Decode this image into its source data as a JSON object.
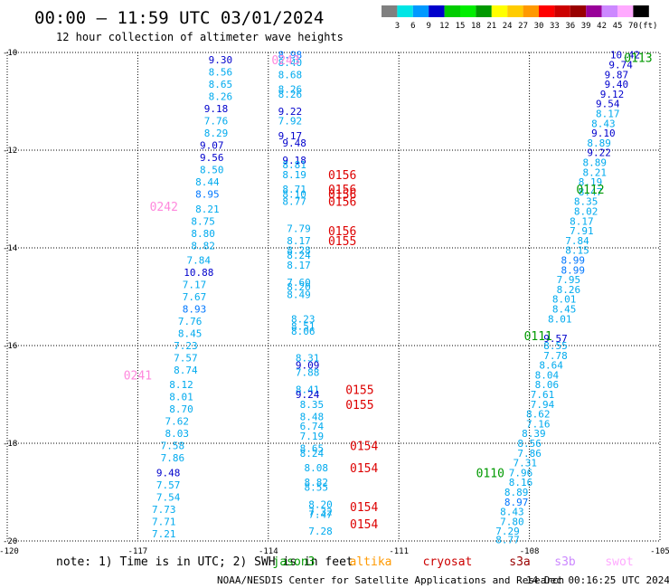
{
  "header": {
    "title": "00:00 — 11:59 UTC 03/01/2024",
    "subtitle": "12 hour collection of altimeter wave heights"
  },
  "colorbar": {
    "unit_label": "(ft)",
    "labels": [
      "3",
      "6",
      "9",
      "12",
      "15",
      "18",
      "21",
      "24",
      "27",
      "30",
      "33",
      "36",
      "39",
      "42",
      "45",
      "70"
    ],
    "colors": [
      "#808080",
      "#00e5e5",
      "#0099ff",
      "#0000cc",
      "#00cc00",
      "#00ee00",
      "#009900",
      "#ffff00",
      "#ffcc00",
      "#ff9900",
      "#ff0000",
      "#cc0000",
      "#990000",
      "#990099",
      "#cc88ff",
      "#ffaaff",
      "#000000"
    ]
  },
  "footer": {
    "note": "note: 1) Time is in UTC; 2) SWH is in feet",
    "credit": "NOAA/NESDIS Center for Satellite Applications and Research",
    "timestamp": "14 Dec 00:16:25 UTC 2024",
    "satellites": [
      {
        "name": "jason3",
        "color": "#009900"
      },
      {
        "name": "altika",
        "color": "#ff9900"
      },
      {
        "name": "cryosat",
        "color": "#cc0000"
      },
      {
        "name": "s3a",
        "color": "#990000"
      },
      {
        "name": "s3b",
        "color": "#cc88ff"
      },
      {
        "name": "swot",
        "color": "#ffaaff"
      }
    ]
  },
  "chart_data": {
    "type": "scatter",
    "title": "12 hour collection of altimeter wave heights",
    "x_ticks": [
      "-117",
      "-114",
      "-111",
      "-108",
      "-105"
    ],
    "y_ticks": [
      "-10",
      "-12",
      "-14",
      "-16",
      "-18",
      "-20"
    ],
    "x_extra_label": "-120",
    "xlim": [
      -120,
      -105
    ],
    "ylim": [
      -20,
      -10
    ],
    "grid": true,
    "value_colors": {
      "light": "#00aaee",
      "mid": "#0077ff",
      "dark": "#0000cc"
    },
    "passes": [
      {
        "label": "0243",
        "lon": -113.6,
        "lat": -10.15,
        "color": "#ff88dd"
      },
      {
        "label": "0242",
        "lon": -116.4,
        "lat": -13.15,
        "color": "#ff88dd"
      },
      {
        "label": "0241",
        "lon": -117.0,
        "lat": -16.6,
        "color": "#ff88dd"
      },
      {
        "label": "0156",
        "lon": -112.3,
        "lat": -12.5,
        "color": "#dd0000"
      },
      {
        "label": "0156",
        "lon": -112.3,
        "lat": -12.8,
        "color": "#dd0000"
      },
      {
        "label": "0156",
        "lon": -112.3,
        "lat": -12.9,
        "color": "#dd0000"
      },
      {
        "label": "0156",
        "lon": -112.3,
        "lat": -13.05,
        "color": "#dd0000"
      },
      {
        "label": "0156",
        "lon": -112.3,
        "lat": -13.65,
        "color": "#dd0000"
      },
      {
        "label": "0155",
        "lon": -112.3,
        "lat": -13.85,
        "color": "#dd0000"
      },
      {
        "label": "0155",
        "lon": -111.9,
        "lat": -16.9,
        "color": "#dd0000"
      },
      {
        "label": "0155",
        "lon": -111.9,
        "lat": -17.2,
        "color": "#dd0000"
      },
      {
        "label": "0154",
        "lon": -111.8,
        "lat": -18.05,
        "color": "#dd0000"
      },
      {
        "label": "0154",
        "lon": -111.8,
        "lat": -18.5,
        "color": "#dd0000"
      },
      {
        "label": "0154",
        "lon": -111.8,
        "lat": -19.3,
        "color": "#dd0000"
      },
      {
        "label": "0154",
        "lon": -111.8,
        "lat": -19.65,
        "color": "#dd0000"
      },
      {
        "label": "0113",
        "lon": -105.5,
        "lat": -10.1,
        "color": "#009900"
      },
      {
        "label": "0112",
        "lon": -106.6,
        "lat": -12.8,
        "color": "#009900"
      },
      {
        "label": "0111",
        "lon": -107.8,
        "lat": -15.8,
        "color": "#009900"
      },
      {
        "label": "0110",
        "lon": -108.9,
        "lat": -18.6,
        "color": "#009900"
      }
    ],
    "tracks": [
      {
        "name": "track-west",
        "points": [
          {
            "lon": -115.1,
            "lat": -10.15,
            "swh": "9.30"
          },
          {
            "lon": -115.1,
            "lat": -10.4,
            "swh": "8.56"
          },
          {
            "lon": -115.1,
            "lat": -10.65,
            "swh": "8.65"
          },
          {
            "lon": -115.1,
            "lat": -10.9,
            "swh": "8.26"
          },
          {
            "lon": -115.2,
            "lat": -11.15,
            "swh": "9.18"
          },
          {
            "lon": -115.2,
            "lat": -11.4,
            "swh": "7.76"
          },
          {
            "lon": -115.2,
            "lat": -11.65,
            "swh": "8.29"
          },
          {
            "lon": -115.3,
            "lat": -11.9,
            "swh": "9.07"
          },
          {
            "lon": -115.3,
            "lat": -12.15,
            "swh": "9.56"
          },
          {
            "lon": -115.3,
            "lat": -12.4,
            "swh": "8.50"
          },
          {
            "lon": -115.4,
            "lat": -12.65,
            "swh": "8.44"
          },
          {
            "lon": -115.4,
            "lat": -12.9,
            "swh": "8.95"
          },
          {
            "lon": -115.4,
            "lat": -13.2,
            "swh": "8.21"
          },
          {
            "lon": -115.5,
            "lat": -13.45,
            "swh": "8.75"
          },
          {
            "lon": -115.5,
            "lat": -13.7,
            "swh": "8.80"
          },
          {
            "lon": -115.5,
            "lat": -13.95,
            "swh": "8.82"
          },
          {
            "lon": -115.6,
            "lat": -14.25,
            "swh": "7.84"
          },
          {
            "lon": -115.6,
            "lat": -14.5,
            "swh": "10.88"
          },
          {
            "lon": -115.7,
            "lat": -14.75,
            "swh": "7.17"
          },
          {
            "lon": -115.7,
            "lat": -15.0,
            "swh": "7.67"
          },
          {
            "lon": -115.7,
            "lat": -15.25,
            "swh": "8.93"
          },
          {
            "lon": -115.8,
            "lat": -15.5,
            "swh": "7.76"
          },
          {
            "lon": -115.8,
            "lat": -15.75,
            "swh": "8.45"
          },
          {
            "lon": -115.9,
            "lat": -16.0,
            "swh": "7.23"
          },
          {
            "lon": -115.9,
            "lat": -16.25,
            "swh": "7.57"
          },
          {
            "lon": -115.9,
            "lat": -16.5,
            "swh": "8.74"
          },
          {
            "lon": -116.0,
            "lat": -16.8,
            "swh": "8.12"
          },
          {
            "lon": -116.0,
            "lat": -17.05,
            "swh": "8.01"
          },
          {
            "lon": -116.0,
            "lat": -17.3,
            "swh": "8.70"
          },
          {
            "lon": -116.1,
            "lat": -17.55,
            "swh": "7.62"
          },
          {
            "lon": -116.1,
            "lat": -17.8,
            "swh": "8.03"
          },
          {
            "lon": -116.2,
            "lat": -18.05,
            "swh": "7.58"
          },
          {
            "lon": -116.2,
            "lat": -18.3,
            "swh": "7.86"
          },
          {
            "lon": -116.3,
            "lat": -18.6,
            "swh": "9.48"
          },
          {
            "lon": -116.3,
            "lat": -18.85,
            "swh": "7.57"
          },
          {
            "lon": -116.3,
            "lat": -19.1,
            "swh": "7.54"
          },
          {
            "lon": -116.4,
            "lat": -19.35,
            "swh": "7.73"
          },
          {
            "lon": -116.4,
            "lat": -19.6,
            "swh": "7.71"
          },
          {
            "lon": -116.4,
            "lat": -19.85,
            "swh": "7.21"
          }
        ]
      },
      {
        "name": "track-middle",
        "points": [
          {
            "lon": -113.5,
            "lat": -10.05,
            "swh": "8.98"
          },
          {
            "lon": -113.5,
            "lat": -10.2,
            "swh": "8.40"
          },
          {
            "lon": -113.5,
            "lat": -10.45,
            "swh": "8.68"
          },
          {
            "lon": -113.5,
            "lat": -10.75,
            "swh": "8.26"
          },
          {
            "lon": -113.5,
            "lat": -10.85,
            "swh": "8.26"
          },
          {
            "lon": -113.5,
            "lat": -11.2,
            "swh": "9.22"
          },
          {
            "lon": -113.5,
            "lat": -11.4,
            "swh": "7.92"
          },
          {
            "lon": -113.5,
            "lat": -11.7,
            "swh": "9.17"
          },
          {
            "lon": -113.4,
            "lat": -11.85,
            "swh": "9.48"
          },
          {
            "lon": -113.4,
            "lat": -12.2,
            "swh": "9.18"
          },
          {
            "lon": -113.4,
            "lat": -12.3,
            "swh": "8.81"
          },
          {
            "lon": -113.4,
            "lat": -12.5,
            "swh": "8.19"
          },
          {
            "lon": -113.4,
            "lat": -12.8,
            "swh": "8.71"
          },
          {
            "lon": -113.4,
            "lat": -12.9,
            "swh": "8.10"
          },
          {
            "lon": -113.4,
            "lat": -13.05,
            "swh": "8.77"
          },
          {
            "lon": -113.3,
            "lat": -13.6,
            "swh": "7.79"
          },
          {
            "lon": -113.3,
            "lat": -13.85,
            "swh": "8.17"
          },
          {
            "lon": -113.3,
            "lat": -14.05,
            "swh": "8.28"
          },
          {
            "lon": -113.3,
            "lat": -14.15,
            "swh": "8.24"
          },
          {
            "lon": -113.3,
            "lat": -14.35,
            "swh": "8.17"
          },
          {
            "lon": -113.3,
            "lat": -14.7,
            "swh": "7.60"
          },
          {
            "lon": -113.3,
            "lat": -14.8,
            "swh": "8.20"
          },
          {
            "lon": -113.3,
            "lat": -14.95,
            "swh": "8.49"
          },
          {
            "lon": -113.2,
            "lat": -15.45,
            "swh": "8.23"
          },
          {
            "lon": -113.2,
            "lat": -15.6,
            "swh": "8.51"
          },
          {
            "lon": -113.2,
            "lat": -15.7,
            "swh": "8.06"
          },
          {
            "lon": -113.1,
            "lat": -16.25,
            "swh": "8.31"
          },
          {
            "lon": -113.1,
            "lat": -16.4,
            "swh": "9.09"
          },
          {
            "lon": -113.1,
            "lat": -16.55,
            "swh": "7.88"
          },
          {
            "lon": -113.1,
            "lat": -16.9,
            "swh": "8.41"
          },
          {
            "lon": -113.1,
            "lat": -17.0,
            "swh": "9.24"
          },
          {
            "lon": -113.0,
            "lat": -17.2,
            "swh": "8.35"
          },
          {
            "lon": -113.0,
            "lat": -17.45,
            "swh": "8.48"
          },
          {
            "lon": -113.0,
            "lat": -17.65,
            "swh": "6.74"
          },
          {
            "lon": -113.0,
            "lat": -17.85,
            "swh": "7.19"
          },
          {
            "lon": -113.0,
            "lat": -18.1,
            "swh": "8.65"
          },
          {
            "lon": -113.0,
            "lat": -18.2,
            "swh": "8.24"
          },
          {
            "lon": -112.9,
            "lat": -18.5,
            "swh": "8.08"
          },
          {
            "lon": -112.9,
            "lat": -18.8,
            "swh": "8.82"
          },
          {
            "lon": -112.9,
            "lat": -18.9,
            "swh": "8.55"
          },
          {
            "lon": -112.8,
            "lat": -19.25,
            "swh": "8.20"
          },
          {
            "lon": -112.8,
            "lat": -19.4,
            "swh": "7.32"
          },
          {
            "lon": -112.8,
            "lat": -19.45,
            "swh": "7.47"
          },
          {
            "lon": -112.8,
            "lat": -19.8,
            "swh": "7.28"
          }
        ]
      },
      {
        "name": "track-east",
        "points": [
          {
            "lon": -105.8,
            "lat": -10.05,
            "swh": "10.42"
          },
          {
            "lon": -105.9,
            "lat": -10.25,
            "swh": "9.74"
          },
          {
            "lon": -106.0,
            "lat": -10.45,
            "swh": "9.87"
          },
          {
            "lon": -106.0,
            "lat": -10.65,
            "swh": "9.40"
          },
          {
            "lon": -106.1,
            "lat": -10.85,
            "swh": "9.12"
          },
          {
            "lon": -106.2,
            "lat": -11.05,
            "swh": "9.54"
          },
          {
            "lon": -106.2,
            "lat": -11.25,
            "swh": "8.17"
          },
          {
            "lon": -106.3,
            "lat": -11.45,
            "swh": "8.43"
          },
          {
            "lon": -106.3,
            "lat": -11.65,
            "swh": "9.10"
          },
          {
            "lon": -106.4,
            "lat": -11.85,
            "swh": "8.89"
          },
          {
            "lon": -106.4,
            "lat": -12.05,
            "swh": "9.22"
          },
          {
            "lon": -106.5,
            "lat": -12.25,
            "swh": "8.89"
          },
          {
            "lon": -106.5,
            "lat": -12.45,
            "swh": "8.21"
          },
          {
            "lon": -106.6,
            "lat": -12.65,
            "swh": "8.19"
          },
          {
            "lon": -106.6,
            "lat": -12.85,
            "swh": "8.47"
          },
          {
            "lon": -106.7,
            "lat": -13.05,
            "swh": "8.35"
          },
          {
            "lon": -106.7,
            "lat": -13.25,
            "swh": "8.02"
          },
          {
            "lon": -106.8,
            "lat": -13.45,
            "swh": "8.17"
          },
          {
            "lon": -106.8,
            "lat": -13.65,
            "swh": "7.91"
          },
          {
            "lon": -106.9,
            "lat": -13.85,
            "swh": "7.84"
          },
          {
            "lon": -106.9,
            "lat": -14.05,
            "swh": "8.15"
          },
          {
            "lon": -107.0,
            "lat": -14.25,
            "swh": "8.99"
          },
          {
            "lon": -107.0,
            "lat": -14.45,
            "swh": "8.99"
          },
          {
            "lon": -107.1,
            "lat": -14.65,
            "swh": "7.95"
          },
          {
            "lon": -107.1,
            "lat": -14.85,
            "swh": "8.26"
          },
          {
            "lon": -107.2,
            "lat": -15.05,
            "swh": "8.01"
          },
          {
            "lon": -107.2,
            "lat": -15.25,
            "swh": "8.45"
          },
          {
            "lon": -107.3,
            "lat": -15.45,
            "swh": "8.01"
          },
          {
            "lon": -107.4,
            "lat": -15.85,
            "swh": "9.57"
          },
          {
            "lon": -107.4,
            "lat": -16.0,
            "swh": "8.55"
          },
          {
            "lon": -107.4,
            "lat": -16.2,
            "swh": "7.78"
          },
          {
            "lon": -107.5,
            "lat": -16.4,
            "swh": "8.64"
          },
          {
            "lon": -107.6,
            "lat": -16.6,
            "swh": "8.04"
          },
          {
            "lon": -107.6,
            "lat": -16.8,
            "swh": "8.06"
          },
          {
            "lon": -107.7,
            "lat": -17.0,
            "swh": "7.61"
          },
          {
            "lon": -107.7,
            "lat": -17.2,
            "swh": "7.94"
          },
          {
            "lon": -107.8,
            "lat": -17.4,
            "swh": "8.62"
          },
          {
            "lon": -107.8,
            "lat": -17.6,
            "swh": "7.16"
          },
          {
            "lon": -107.9,
            "lat": -17.8,
            "swh": "8.39"
          },
          {
            "lon": -108.0,
            "lat": -18.0,
            "swh": "8.56"
          },
          {
            "lon": -108.0,
            "lat": -18.2,
            "swh": "7.86"
          },
          {
            "lon": -108.1,
            "lat": -18.4,
            "swh": "7.31"
          },
          {
            "lon": -108.2,
            "lat": -18.6,
            "swh": "7.96"
          },
          {
            "lon": -108.2,
            "lat": -18.8,
            "swh": "8.16"
          },
          {
            "lon": -108.3,
            "lat": -19.0,
            "swh": "8.89"
          },
          {
            "lon": -108.3,
            "lat": -19.2,
            "swh": "8.97"
          },
          {
            "lon": -108.4,
            "lat": -19.4,
            "swh": "8.43"
          },
          {
            "lon": -108.4,
            "lat": -19.6,
            "swh": "7.80"
          },
          {
            "lon": -108.5,
            "lat": -19.8,
            "swh": "7.29"
          },
          {
            "lon": -108.5,
            "lat": -19.97,
            "swh": "8.77"
          }
        ]
      }
    ]
  }
}
